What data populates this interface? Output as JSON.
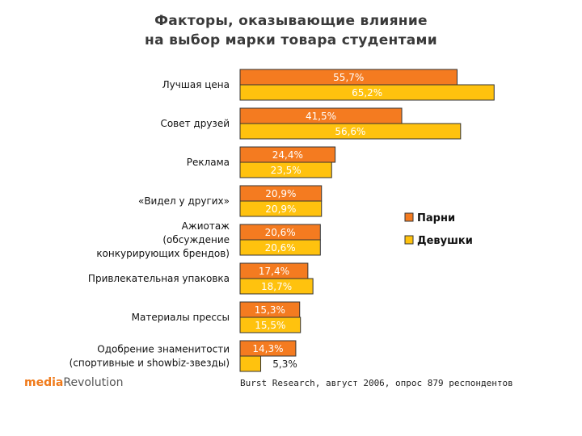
{
  "title": {
    "line1": "Факторы, оказывающие влияние",
    "line2": "на выбор марки товара студентами"
  },
  "colors": {
    "series1": "#f47b20",
    "series2": "#ffc20e",
    "outline": "#333333"
  },
  "chart_data": {
    "type": "bar",
    "orientation": "horizontal",
    "title": "Факторы, оказывающие влияние на выбор марки товара студентами",
    "categories": [
      [
        "Лучшая цена"
      ],
      [
        "Совет друзей"
      ],
      [
        "Реклама"
      ],
      [
        "«Видел у других»"
      ],
      [
        "Ажиотаж",
        "(обсуждение",
        "конкурирующих брендов)"
      ],
      [
        "Привлекательная упаковка"
      ],
      [
        "Материалы прессы"
      ],
      [
        "Одобрение знаменитости",
        "(спортивные и showbiz-звезды)"
      ]
    ],
    "series": [
      {
        "name": "Парни",
        "values": [
          55.7,
          41.5,
          24.4,
          20.9,
          20.6,
          17.4,
          15.3,
          14.3
        ],
        "labels": [
          "55,7%",
          "41,5%",
          "24,4%",
          "20,9%",
          "20,6%",
          "17,4%",
          "15,3%",
          "14,3%"
        ]
      },
      {
        "name": "Девушки",
        "values": [
          65.2,
          56.6,
          23.5,
          20.9,
          20.6,
          18.7,
          15.5,
          5.3
        ],
        "labels": [
          "65,2%",
          "56,6%",
          "23,5%",
          "20,9%",
          "20,6%",
          "18,7%",
          "15,5%",
          "5,3%"
        ]
      }
    ],
    "legend_position": "right"
  },
  "source": "Burst Research, август 2006, опрос 879 респондентов",
  "logo": {
    "part1": "media",
    "part2": "Revolution"
  }
}
